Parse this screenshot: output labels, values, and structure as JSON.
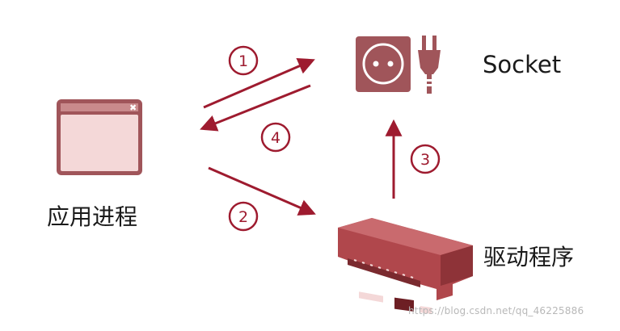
{
  "labels": {
    "socket": "Socket",
    "app_process": "应用进程",
    "driver": "驱动程序"
  },
  "steps": [
    "1",
    "2",
    "3",
    "4"
  ],
  "watermark": "https://blog.csdn.net/qq_46225886",
  "colors": {
    "accent": "#9e1b2f",
    "icon_fill": "#a0555a",
    "icon_light": "#f4d8d8",
    "board": "#b0474c"
  },
  "icons": {
    "app_process": "window-icon",
    "socket": "power-outlet-icon",
    "plug": "power-plug-icon",
    "driver": "network-card-icon"
  }
}
